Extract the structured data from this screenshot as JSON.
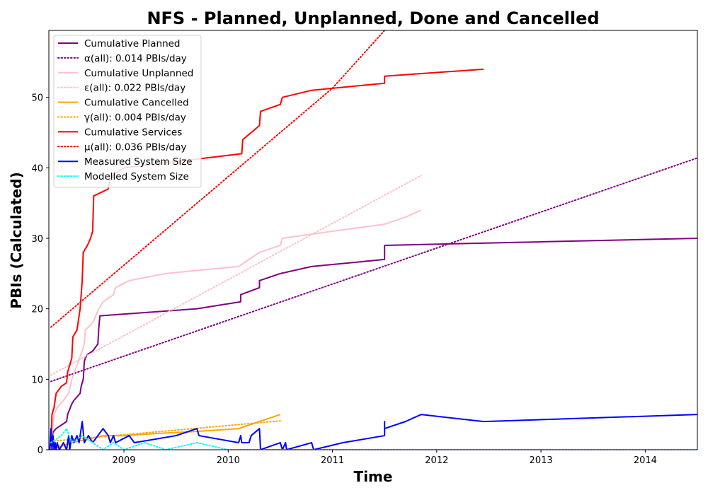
{
  "chart_data": {
    "type": "line",
    "title": "NFS - Planned, Unplanned, Done  and Cancelled",
    "xlabel": "Time",
    "ylabel": "PBIs (Calculated)",
    "xlim": [
      2008.28,
      2014.5
    ],
    "ylim": [
      0,
      59.5
    ],
    "x_ticks": [
      2009,
      2010,
      2011,
      2012,
      2013,
      2014
    ],
    "x_tick_labels": [
      "2009",
      "2010",
      "2011",
      "2012",
      "2013",
      "2014"
    ],
    "y_ticks": [
      0,
      10,
      20,
      30,
      40,
      50
    ],
    "y_tick_labels": [
      "0",
      "10",
      "20",
      "30",
      "40",
      "50"
    ],
    "legend_position": "top-left",
    "series": [
      {
        "name": "Cumulative Planned",
        "style": "solid",
        "color": "#800080",
        "points": [
          [
            2008.3,
            0.5
          ],
          [
            2008.32,
            2.5
          ],
          [
            2008.35,
            3
          ],
          [
            2008.4,
            3.5
          ],
          [
            2008.45,
            4
          ],
          [
            2008.46,
            5
          ],
          [
            2008.5,
            6.5
          ],
          [
            2008.52,
            7
          ],
          [
            2008.55,
            7.5
          ],
          [
            2008.58,
            8
          ],
          [
            2008.59,
            9
          ],
          [
            2008.61,
            10
          ],
          [
            2008.62,
            12.5
          ],
          [
            2008.63,
            13
          ],
          [
            2008.65,
            13.5
          ],
          [
            2008.7,
            14
          ],
          [
            2008.75,
            15
          ],
          [
            2008.76,
            17.5
          ],
          [
            2008.77,
            19
          ],
          [
            2009.7,
            20
          ],
          [
            2010.12,
            21
          ],
          [
            2010.12,
            22
          ],
          [
            2010.3,
            23
          ],
          [
            2010.3,
            24
          ],
          [
            2010.5,
            25
          ],
          [
            2010.8,
            26
          ],
          [
            2011.5,
            27
          ],
          [
            2011.5,
            29
          ],
          [
            2014.5,
            30
          ]
        ]
      },
      {
        "name": "α(all): 0.014 PBIs/day",
        "style": "dotted",
        "color": "#800080",
        "points": [
          [
            2008.3,
            9.7
          ],
          [
            2014.5,
            41.4
          ]
        ]
      },
      {
        "name": "Cumulative Unplanned",
        "style": "solid",
        "color": "#ffc0cb",
        "points": [
          [
            2008.3,
            1
          ],
          [
            2008.33,
            5
          ],
          [
            2008.36,
            6
          ],
          [
            2008.42,
            7
          ],
          [
            2008.47,
            8
          ],
          [
            2008.5,
            10
          ],
          [
            2008.55,
            12
          ],
          [
            2008.6,
            14
          ],
          [
            2008.62,
            15
          ],
          [
            2008.63,
            17
          ],
          [
            2008.7,
            18
          ],
          [
            2008.76,
            20
          ],
          [
            2008.8,
            21
          ],
          [
            2008.9,
            22
          ],
          [
            2008.92,
            23
          ],
          [
            2009.05,
            24
          ],
          [
            2009.4,
            25
          ],
          [
            2010.1,
            26
          ],
          [
            2010.3,
            28
          ],
          [
            2010.5,
            29
          ],
          [
            2010.52,
            30
          ],
          [
            2011.0,
            31
          ],
          [
            2011.5,
            32
          ],
          [
            2011.7,
            33
          ],
          [
            2011.85,
            34
          ]
        ]
      },
      {
        "name": "ε(all): 0.022 PBIs/day",
        "style": "dotted",
        "color": "#ffc0cb",
        "points": [
          [
            2008.3,
            10.6
          ],
          [
            2011.85,
            38.9
          ]
        ]
      },
      {
        "name": "Cumulative Cancelled",
        "style": "solid",
        "color": "#ffa500",
        "points": [
          [
            2008.3,
            0
          ],
          [
            2008.5,
            1
          ],
          [
            2008.8,
            2
          ],
          [
            2009.0,
            2
          ],
          [
            2009.3,
            2.3
          ],
          [
            2009.7,
            2.6
          ],
          [
            2010.1,
            3
          ],
          [
            2010.3,
            4
          ],
          [
            2010.5,
            5
          ]
        ]
      },
      {
        "name": "γ(all): 0.004 PBIs/day",
        "style": "dotted",
        "color": "#ffa500",
        "points": [
          [
            2008.3,
            1.2
          ],
          [
            2010.5,
            4.1
          ]
        ]
      },
      {
        "name": "Cumulative Services",
        "style": "solid",
        "color": "#ff0000",
        "points": [
          [
            2008.3,
            1
          ],
          [
            2008.31,
            5
          ],
          [
            2008.33,
            6
          ],
          [
            2008.34,
            7
          ],
          [
            2008.35,
            8
          ],
          [
            2008.4,
            9
          ],
          [
            2008.45,
            9.5
          ],
          [
            2008.46,
            11
          ],
          [
            2008.5,
            13
          ],
          [
            2008.51,
            16
          ],
          [
            2008.55,
            17
          ],
          [
            2008.58,
            20
          ],
          [
            2008.6,
            24
          ],
          [
            2008.61,
            28
          ],
          [
            2008.65,
            29
          ],
          [
            2008.68,
            30
          ],
          [
            2008.7,
            31
          ],
          [
            2008.71,
            36
          ],
          [
            2008.85,
            37
          ],
          [
            2008.86,
            38
          ],
          [
            2008.9,
            39
          ],
          [
            2009.0,
            40
          ],
          [
            2010.13,
            42
          ],
          [
            2010.14,
            44
          ],
          [
            2010.3,
            46
          ],
          [
            2010.31,
            48
          ],
          [
            2010.5,
            49
          ],
          [
            2010.52,
            50
          ],
          [
            2010.8,
            51
          ],
          [
            2011.5,
            52
          ],
          [
            2011.5,
            53
          ],
          [
            2012.45,
            54
          ]
        ]
      },
      {
        "name": "μ(all): 0.036 PBIs/day",
        "style": "dotted",
        "color": "#ff0000",
        "points": [
          [
            2008.3,
            17.4
          ],
          [
            2011.0,
            51.3
          ],
          [
            2011.5,
            59.5
          ]
        ]
      },
      {
        "name": "Measured System Size",
        "style": "solid",
        "color": "#0000ff",
        "points": [
          [
            2008.29,
            0
          ],
          [
            2008.3,
            3
          ],
          [
            2008.31,
            0
          ],
          [
            2008.32,
            2
          ],
          [
            2008.33,
            0
          ],
          [
            2008.34,
            1
          ],
          [
            2008.35,
            0
          ],
          [
            2008.36,
            1
          ],
          [
            2008.38,
            0
          ],
          [
            2008.42,
            1
          ],
          [
            2008.45,
            0
          ],
          [
            2008.47,
            2
          ],
          [
            2008.48,
            0
          ],
          [
            2008.5,
            2
          ],
          [
            2008.52,
            1
          ],
          [
            2008.55,
            2
          ],
          [
            2008.57,
            1
          ],
          [
            2008.59,
            3
          ],
          [
            2008.6,
            4
          ],
          [
            2008.62,
            1
          ],
          [
            2008.66,
            2
          ],
          [
            2008.7,
            1
          ],
          [
            2008.75,
            2
          ],
          [
            2008.8,
            3
          ],
          [
            2008.85,
            2
          ],
          [
            2008.87,
            1
          ],
          [
            2008.9,
            2
          ],
          [
            2008.92,
            1
          ],
          [
            2009.05,
            2
          ],
          [
            2009.1,
            1
          ],
          [
            2009.5,
            2
          ],
          [
            2009.7,
            3
          ],
          [
            2009.72,
            2
          ],
          [
            2010.1,
            1
          ],
          [
            2010.12,
            2
          ],
          [
            2010.13,
            1
          ],
          [
            2010.2,
            1
          ],
          [
            2010.22,
            2
          ],
          [
            2010.3,
            3
          ],
          [
            2010.31,
            0
          ],
          [
            2010.5,
            1
          ],
          [
            2010.52,
            0
          ],
          [
            2010.55,
            1
          ],
          [
            2010.56,
            0
          ],
          [
            2010.8,
            1
          ],
          [
            2010.82,
            0
          ],
          [
            2011.1,
            1
          ],
          [
            2011.5,
            2
          ],
          [
            2011.5,
            4
          ],
          [
            2011.5,
            3
          ],
          [
            2011.7,
            4
          ],
          [
            2011.85,
            5
          ],
          [
            2012.45,
            4
          ],
          [
            2014.5,
            5
          ]
        ]
      },
      {
        "name": "Modelled System Size",
        "style": "dotted",
        "color": "#00ffff",
        "points": [
          [
            2008.3,
            1
          ],
          [
            2008.4,
            2
          ],
          [
            2008.45,
            3
          ],
          [
            2008.5,
            1
          ],
          [
            2008.6,
            2
          ],
          [
            2008.7,
            1
          ],
          [
            2008.8,
            0
          ],
          [
            2008.9,
            1
          ],
          [
            2009.0,
            0
          ],
          [
            2009.2,
            1
          ],
          [
            2009.4,
            0
          ],
          [
            2009.7,
            1
          ],
          [
            2010.0,
            0
          ],
          [
            2014.5,
            0
          ]
        ]
      }
    ]
  }
}
